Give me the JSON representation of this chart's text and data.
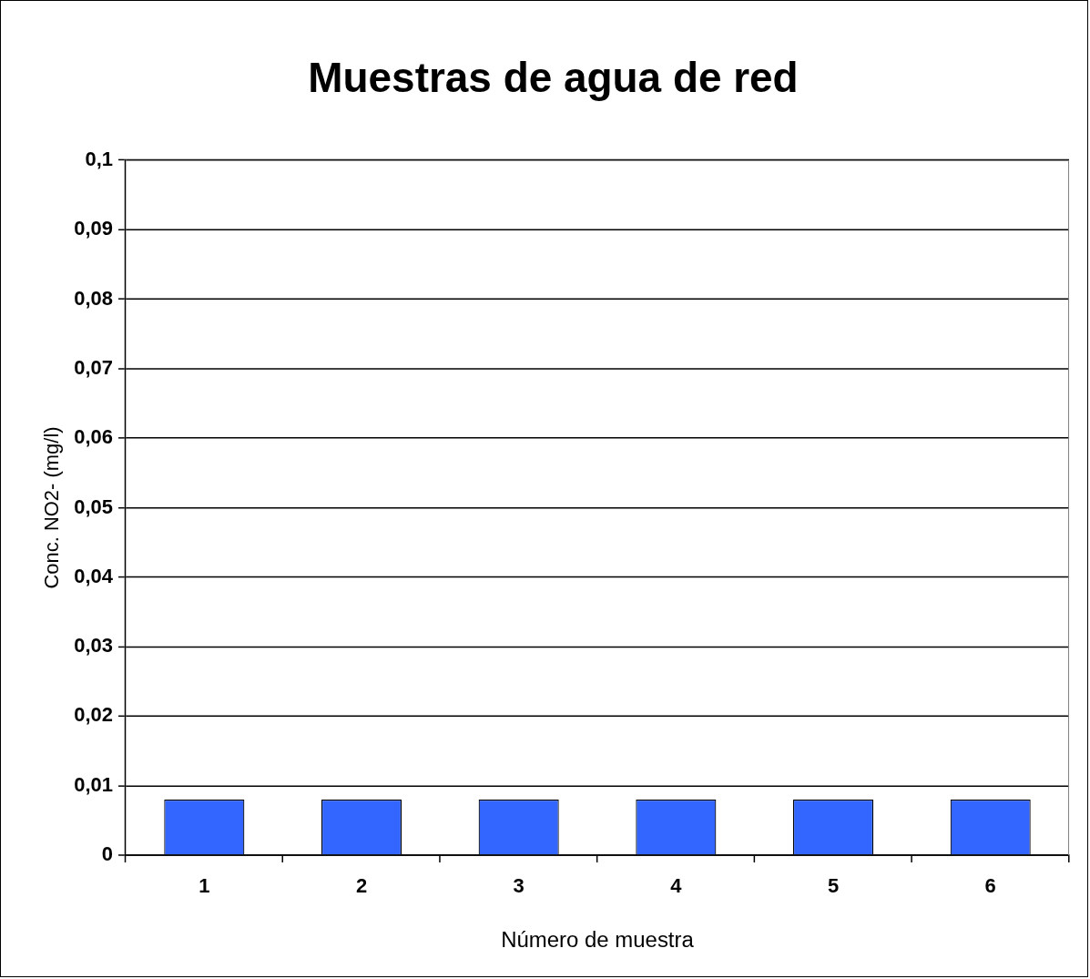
{
  "chart_data": {
    "type": "bar",
    "title": "Muestras de agua de red",
    "xlabel": "Número de muestra",
    "ylabel": "Conc. NO2- (mg/l)",
    "categories": [
      "1",
      "2",
      "3",
      "4",
      "5",
      "6"
    ],
    "values": [
      0.008,
      0.008,
      0.008,
      0.008,
      0.008,
      0.008
    ],
    "color": "#3366ff",
    "ylim": [
      0,
      0.1
    ],
    "yticks": [
      0,
      {
        "value": 0.01,
        "label": "0,01"
      },
      {
        "value": 0.02,
        "label": "0,02"
      },
      {
        "value": 0.03,
        "label": "0,03"
      },
      {
        "value": 0.04,
        "label": "0,04"
      },
      {
        "value": 0.05,
        "label": "0,05"
      },
      {
        "value": 0.06,
        "label": "0,06"
      },
      {
        "value": 0.07,
        "label": "0,07"
      },
      {
        "value": 0.08,
        "label": "0,08"
      },
      {
        "value": 0.09,
        "label": "0,09"
      },
      {
        "value": 0.1,
        "label": "0,1"
      }
    ],
    "grid": "y"
  }
}
